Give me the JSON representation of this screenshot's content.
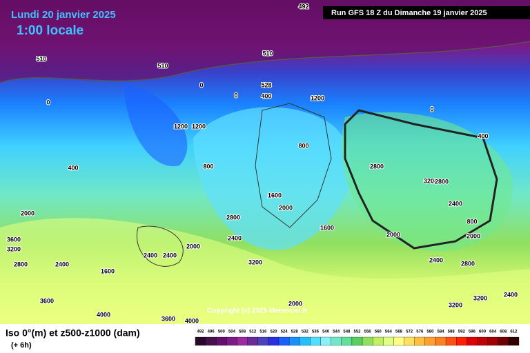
{
  "header": {
    "date": "Lundi 20 janvier 2025",
    "time": "1:00 locale",
    "run": "Run GFS 18 Z du Dimanche 19 janvier 2025"
  },
  "copyright": "Copyright (c) 2025 Meteociel.fr",
  "footer": {
    "title": "Iso 0°(m) et z500-z1000 (dam)",
    "step": "(+ 6h)"
  },
  "scale": {
    "labels": [
      492,
      496,
      500,
      504,
      508,
      512,
      516,
      520,
      524,
      528,
      532,
      536,
      540,
      544,
      548,
      552,
      556,
      560,
      564,
      568,
      572,
      576,
      580,
      584,
      588,
      592,
      596,
      600,
      604,
      608,
      612
    ],
    "colors": [
      "#2a082a",
      "#46104a",
      "#62106a",
      "#7e1a86",
      "#9a2a9e",
      "#6a2a9a",
      "#4a40c0",
      "#2a30e0",
      "#1a60ff",
      "#1a90ff",
      "#20c0ff",
      "#50e0ff",
      "#88f0ff",
      "#70e8c8",
      "#60e098",
      "#58d060",
      "#90e060",
      "#c0f060",
      "#e0ff80",
      "#ffff80",
      "#ffe060",
      "#ffc040",
      "#ffa030",
      "#ff8020",
      "#ff5010",
      "#ff2000",
      "#e00000",
      "#c00000",
      "#a00000",
      "#700000",
      "#300000"
    ]
  },
  "map_labels": [
    "492",
    "510",
    "510",
    "510",
    "528",
    "0",
    "0",
    "0",
    "400",
    "1200",
    "1200",
    "1200",
    "800",
    "400",
    "800",
    "2000",
    "1600",
    "2000",
    "3600",
    "3200",
    "2800",
    "2400",
    "2400",
    "2000",
    "1600",
    "2800",
    "2400",
    "3200",
    "3600",
    "4000",
    "2000",
    "1600",
    "2400",
    "2800",
    "3200",
    "2400",
    "2000",
    "0",
    "400",
    "800",
    "2400",
    "2800",
    "2000",
    "2400",
    "3200",
    "3600",
    "4000",
    "2800",
    "3200"
  ]
}
